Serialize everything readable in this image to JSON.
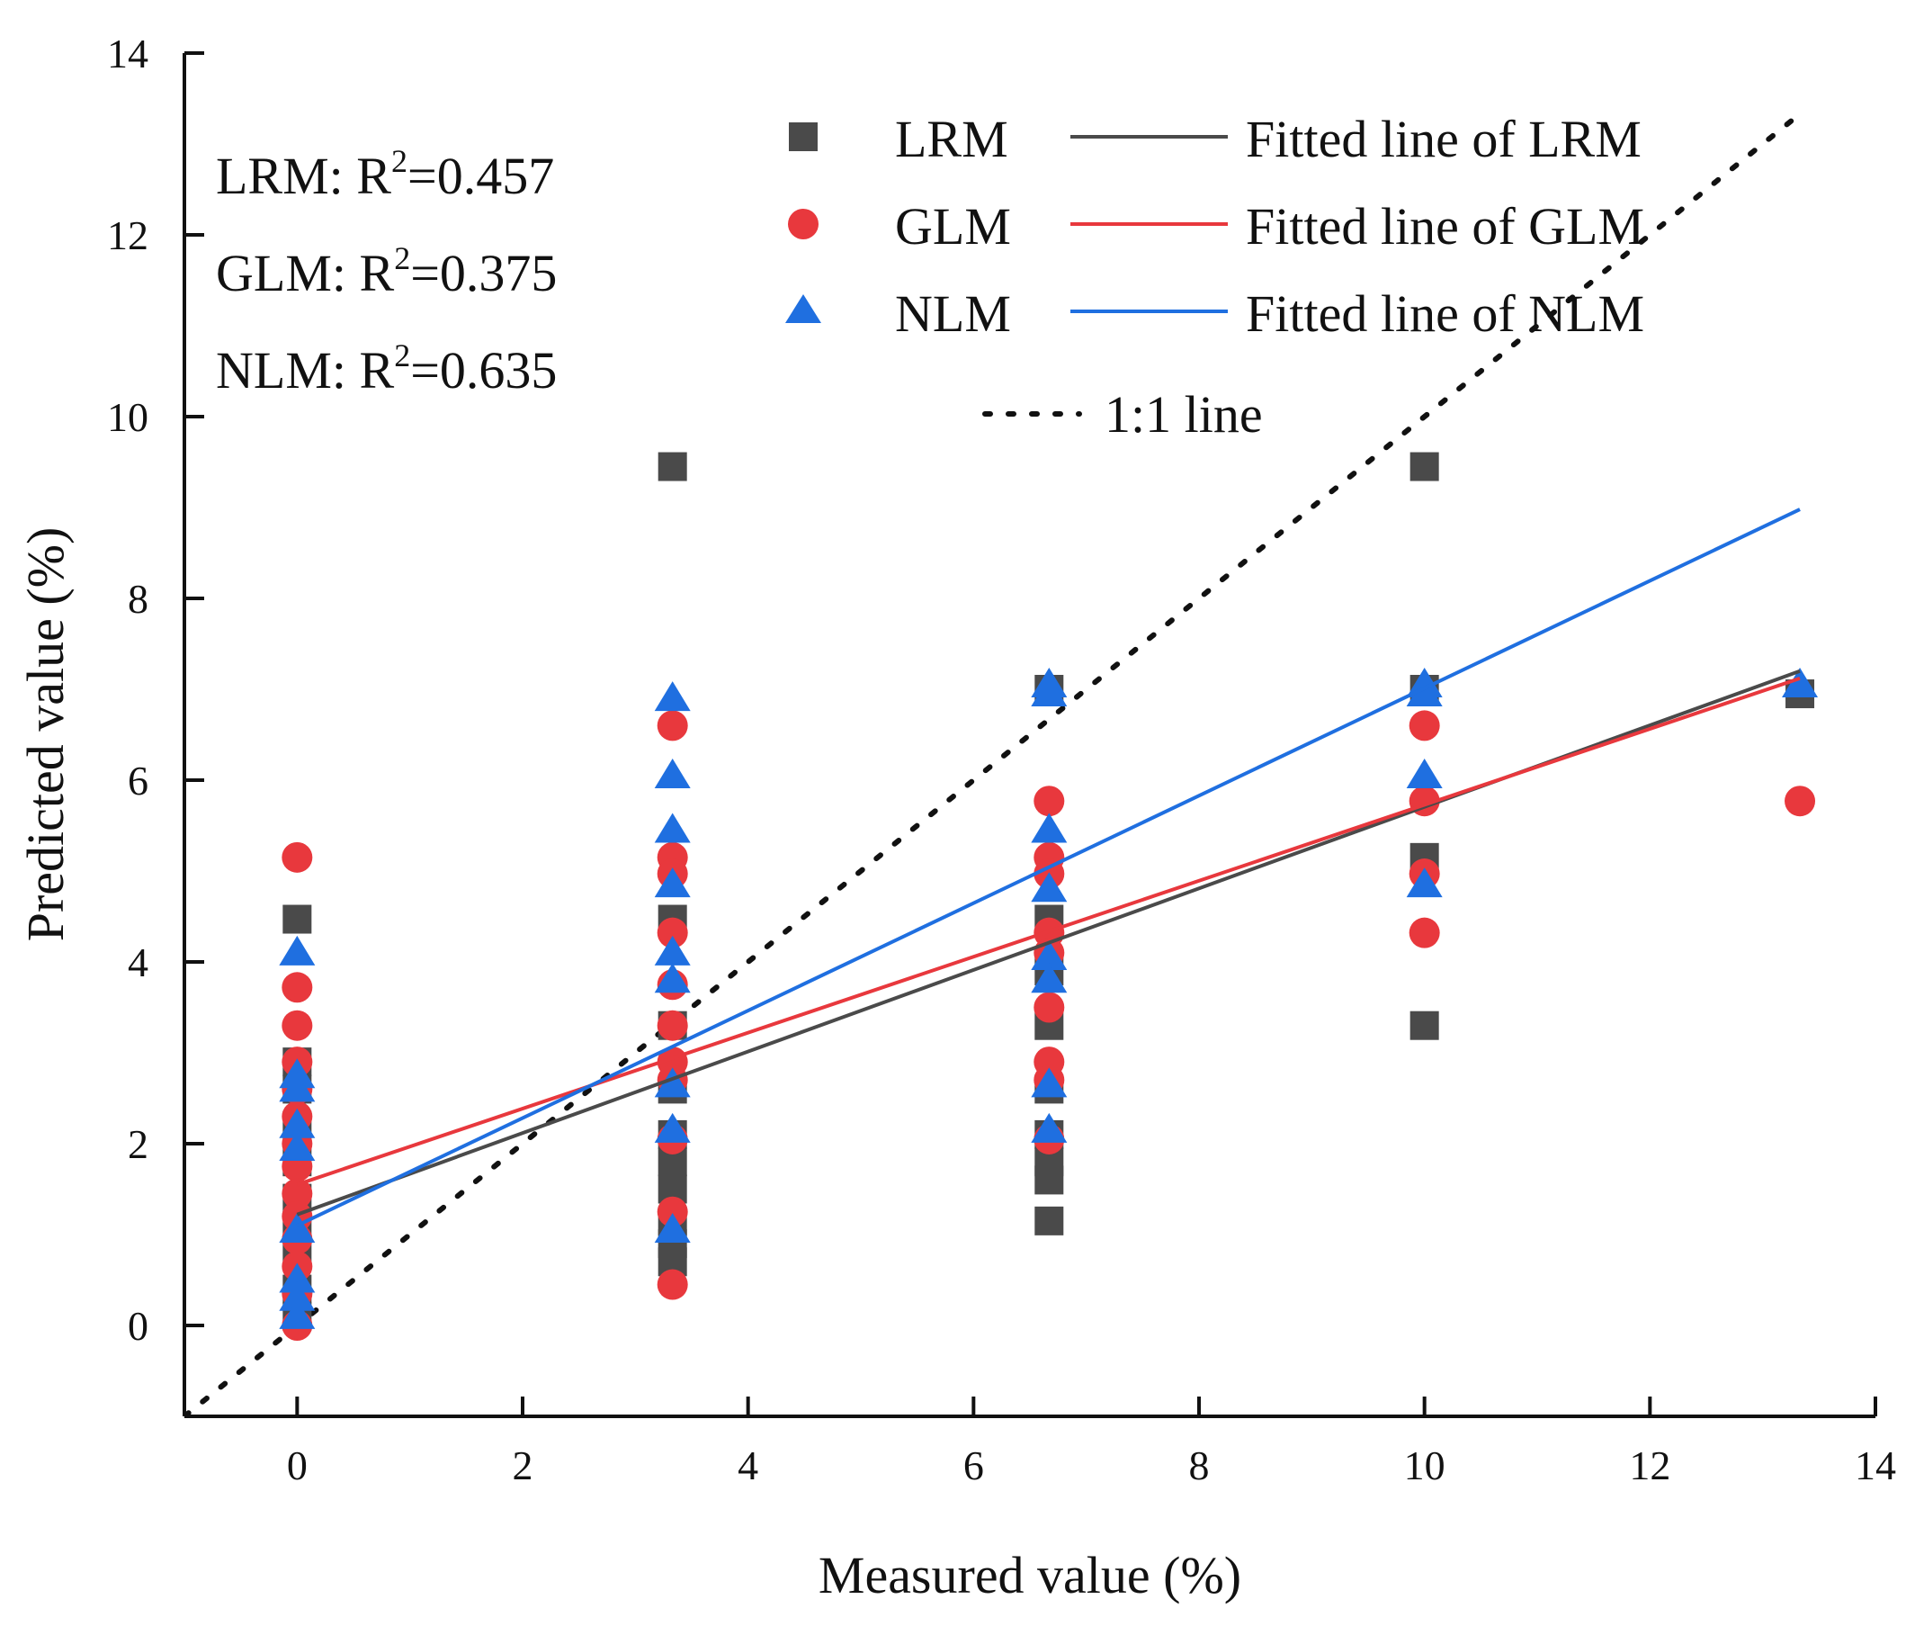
{
  "chart_data": {
    "type": "scatter",
    "xlabel": "Measured value (%)",
    "ylabel": "Predicted value (%)",
    "xlim": [
      -1,
      14
    ],
    "ylim": [
      -1,
      14
    ],
    "xticks": [
      0,
      2,
      4,
      6,
      8,
      10,
      12,
      14
    ],
    "yticks": [
      0,
      2,
      4,
      6,
      8,
      10,
      12,
      14
    ],
    "series": [
      {
        "name": "LRM",
        "marker": "square",
        "color": "#4a4a4a",
        "points": [
          [
            0,
            4.47
          ],
          [
            0,
            2.9
          ],
          [
            0,
            2.6
          ],
          [
            0,
            2.2
          ],
          [
            0,
            1.8
          ],
          [
            0,
            1.4
          ],
          [
            0,
            1.1
          ],
          [
            0,
            0.8
          ],
          [
            0,
            0.4
          ],
          [
            0,
            0.1
          ],
          [
            3.33,
            9.45
          ],
          [
            3.33,
            4.47
          ],
          [
            3.33,
            3.3
          ],
          [
            3.33,
            2.6
          ],
          [
            3.33,
            2.1
          ],
          [
            3.33,
            1.8
          ],
          [
            3.33,
            1.5
          ],
          [
            3.33,
            1.15
          ],
          [
            3.33,
            0.9
          ],
          [
            3.33,
            0.7
          ],
          [
            6.67,
            7.0
          ],
          [
            6.67,
            4.47
          ],
          [
            6.67,
            3.9
          ],
          [
            6.67,
            3.3
          ],
          [
            6.67,
            2.6
          ],
          [
            6.67,
            2.1
          ],
          [
            6.67,
            1.8
          ],
          [
            6.67,
            1.6
          ],
          [
            6.67,
            1.15
          ],
          [
            10,
            9.45
          ],
          [
            10,
            7.0
          ],
          [
            10,
            5.15
          ],
          [
            10,
            3.3
          ],
          [
            13.33,
            6.95
          ]
        ]
      },
      {
        "name": "GLM",
        "marker": "circle",
        "color": "#e8383d",
        "points": [
          [
            0,
            5.15
          ],
          [
            0,
            3.72
          ],
          [
            0,
            3.3
          ],
          [
            0,
            2.9
          ],
          [
            0,
            2.6
          ],
          [
            0,
            2.3
          ],
          [
            0,
            2.0
          ],
          [
            0,
            1.75
          ],
          [
            0,
            1.45
          ],
          [
            0,
            1.2
          ],
          [
            0,
            0.95
          ],
          [
            0,
            0.65
          ],
          [
            0,
            0.35
          ],
          [
            0,
            0.0
          ],
          [
            3.33,
            6.6
          ],
          [
            3.33,
            5.15
          ],
          [
            3.33,
            4.97
          ],
          [
            3.33,
            4.32
          ],
          [
            3.33,
            3.75
          ],
          [
            3.33,
            3.3
          ],
          [
            3.33,
            2.9
          ],
          [
            3.33,
            2.7
          ],
          [
            3.33,
            2.05
          ],
          [
            3.33,
            1.25
          ],
          [
            3.33,
            0.45
          ],
          [
            6.67,
            5.77
          ],
          [
            6.67,
            5.15
          ],
          [
            6.67,
            4.97
          ],
          [
            6.67,
            4.32
          ],
          [
            6.67,
            4.1
          ],
          [
            6.67,
            3.5
          ],
          [
            6.67,
            2.9
          ],
          [
            6.67,
            2.7
          ],
          [
            6.67,
            2.05
          ],
          [
            10,
            6.6
          ],
          [
            10,
            5.77
          ],
          [
            10,
            4.97
          ],
          [
            10,
            4.32
          ],
          [
            13.33,
            5.77
          ]
        ]
      },
      {
        "name": "NLM",
        "marker": "triangle",
        "color": "#1f6fe0",
        "points": [
          [
            0,
            4.1
          ],
          [
            0,
            2.75
          ],
          [
            0,
            2.6
          ],
          [
            0,
            2.2
          ],
          [
            0,
            1.95
          ],
          [
            0,
            1.05
          ],
          [
            0,
            0.5
          ],
          [
            0,
            0.3
          ],
          [
            0,
            0.1
          ],
          [
            3.33,
            6.9
          ],
          [
            3.33,
            6.05
          ],
          [
            3.33,
            5.45
          ],
          [
            3.33,
            4.85
          ],
          [
            3.33,
            4.1
          ],
          [
            3.33,
            3.8
          ],
          [
            3.33,
            2.65
          ],
          [
            3.33,
            2.15
          ],
          [
            3.33,
            1.05
          ],
          [
            6.67,
            7.05
          ],
          [
            6.67,
            6.95
          ],
          [
            6.67,
            5.45
          ],
          [
            6.67,
            4.8
          ],
          [
            6.67,
            4.05
          ],
          [
            6.67,
            3.8
          ],
          [
            6.67,
            2.65
          ],
          [
            6.67,
            2.15
          ],
          [
            10,
            7.05
          ],
          [
            10,
            6.95
          ],
          [
            10,
            6.05
          ],
          [
            10,
            4.85
          ],
          [
            13.33,
            7.05
          ]
        ]
      }
    ],
    "fitted_lines": [
      {
        "name": "Fitted line of LRM",
        "color": "#4a4a4a",
        "x": [
          0,
          13.33
        ],
        "y": [
          1.22,
          7.2
        ]
      },
      {
        "name": "Fitted line of GLM",
        "color": "#e8383d",
        "x": [
          0,
          13.33
        ],
        "y": [
          1.55,
          7.12
        ]
      },
      {
        "name": "Fitted line of NLM",
        "color": "#1f6fe0",
        "x": [
          0,
          13.33
        ],
        "y": [
          1.1,
          8.98
        ]
      }
    ],
    "reference_line": {
      "name": "1:1 line",
      "x": [
        -1,
        13.33
      ],
      "y": [
        -1,
        13.33
      ],
      "style": "dotted",
      "color": "#111111"
    },
    "legend": {
      "position": "top-right",
      "entries": [
        {
          "marker_label": "LRM",
          "line_label": "Fitted line of LRM"
        },
        {
          "marker_label": "GLM",
          "line_label": "Fitted line of GLM"
        },
        {
          "marker_label": "NLM",
          "line_label": "Fitted line of NLM"
        }
      ],
      "reference_label": "1:1 line"
    },
    "annotations": [
      {
        "model": "LRM: R",
        "sup": "2",
        "value": "=0.457"
      },
      {
        "model": "GLM: R",
        "sup": "2",
        "value": "=0.375"
      },
      {
        "model": "NLM: R",
        "sup": "2",
        "value": "=0.635"
      }
    ]
  }
}
